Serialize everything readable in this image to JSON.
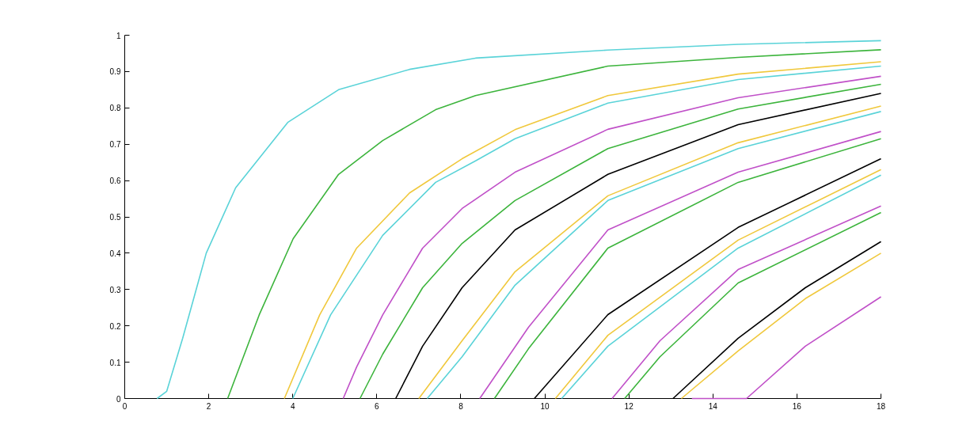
{
  "chart_data": {
    "type": "line",
    "xlim": [
      0,
      18
    ],
    "ylim": [
      0,
      1
    ],
    "xticks": [
      0,
      2,
      4,
      6,
      8,
      10,
      12,
      14,
      16,
      18
    ],
    "yticks": [
      0,
      {
        "value": 0.1,
        "label": "0.1"
      },
      {
        "value": 0.2,
        "label": "0.2"
      },
      {
        "value": 0.3,
        "label": "0.3"
      },
      {
        "value": 0.4,
        "label": "0.4"
      },
      {
        "value": 0.5,
        "label": "0.5"
      },
      {
        "value": 0.6,
        "label": "0.6"
      },
      {
        "value": 0.7,
        "label": "0.7"
      },
      {
        "value": 0.8,
        "label": "0.8"
      },
      {
        "value": 0.9,
        "label": "0.9"
      },
      1
    ],
    "grid": false,
    "marker": "none",
    "line_style": "solid",
    "series": [
      {
        "color": "#5ad3d8",
        "x": [
          0.77,
          1.0,
          1.38,
          1.94,
          2.64,
          3.88,
          5.09,
          6.78,
          8.35,
          11.5,
          14.6,
          18
        ],
        "values": [
          0,
          0.02,
          0.166,
          0.4,
          0.58,
          0.76,
          0.85,
          0.906,
          0.937,
          0.959,
          0.975,
          0.985
        ]
      },
      {
        "color": "#3cb43c",
        "x": [
          2.45,
          3.2,
          4.01,
          5.09,
          6.14,
          7.4,
          8.35,
          11.5,
          14.6,
          18
        ],
        "values": [
          0,
          0.23,
          0.44,
          0.617,
          0.71,
          0.795,
          0.834,
          0.915,
          0.939,
          0.96
        ]
      },
      {
        "color": "#f0c83c",
        "x": [
          3.8,
          4.64,
          5.52,
          6.78,
          8.03,
          9.29,
          11.5,
          14.6,
          18
        ],
        "values": [
          0,
          0.23,
          0.414,
          0.566,
          0.66,
          0.74,
          0.834,
          0.893,
          0.927
        ]
      },
      {
        "color": "#5ad3d8",
        "x": [
          4.0,
          4.9,
          6.14,
          7.4,
          8.35,
          9.29,
          11.5,
          14.6,
          18
        ],
        "values": [
          0,
          0.23,
          0.449,
          0.595,
          0.654,
          0.715,
          0.813,
          0.878,
          0.915
        ]
      },
      {
        "color": "#c050c8",
        "x": [
          5.2,
          5.52,
          6.14,
          7.09,
          8.03,
          9.29,
          11.5,
          14.6,
          18
        ],
        "values": [
          0,
          0.087,
          0.23,
          0.414,
          0.523,
          0.623,
          0.741,
          0.828,
          0.887
        ]
      },
      {
        "color": "#3cb43c",
        "x": [
          5.6,
          6.14,
          7.09,
          8.03,
          9.29,
          11.5,
          14.6,
          18
        ],
        "values": [
          0,
          0.122,
          0.305,
          0.427,
          0.545,
          0.688,
          0.797,
          0.865
        ]
      },
      {
        "color": "#000000",
        "x": [
          6.45,
          7.09,
          8.03,
          9.29,
          11.5,
          14.6,
          18
        ],
        "values": [
          0,
          0.144,
          0.305,
          0.464,
          0.617,
          0.754,
          0.84
        ]
      },
      {
        "color": "#f0c83c",
        "x": [
          7.0,
          8.03,
          9.29,
          11.5,
          14.6,
          18
        ],
        "values": [
          0,
          0.159,
          0.349,
          0.558,
          0.704,
          0.805
        ]
      },
      {
        "color": "#5ad3d8",
        "x": [
          7.2,
          8.03,
          9.29,
          11.5,
          14.6,
          18
        ],
        "values": [
          0,
          0.115,
          0.312,
          0.545,
          0.688,
          0.79
        ]
      },
      {
        "color": "#c050c8",
        "x": [
          8.45,
          9.61,
          11.5,
          14.6,
          18
        ],
        "values": [
          0,
          0.196,
          0.464,
          0.623,
          0.735
        ]
      },
      {
        "color": "#3cb43c",
        "x": [
          8.8,
          9.61,
          11.5,
          14.6,
          18
        ],
        "values": [
          0,
          0.137,
          0.414,
          0.595,
          0.715
        ]
      },
      {
        "color": "#000000",
        "x": [
          9.75,
          11.5,
          14.6,
          18
        ],
        "values": [
          0,
          0.231,
          0.471,
          0.66
        ]
      },
      {
        "color": "#f0c83c",
        "x": [
          10.25,
          11.5,
          14.6,
          18
        ],
        "values": [
          0,
          0.174,
          0.436,
          0.63
        ]
      },
      {
        "color": "#5ad3d8",
        "x": [
          10.4,
          11.5,
          14.6,
          18
        ],
        "values": [
          0,
          0.144,
          0.414,
          0.615
        ]
      },
      {
        "color": "#c050c8",
        "x": [
          11.6,
          12.74,
          14.6,
          18
        ],
        "values": [
          0,
          0.159,
          0.355,
          0.53
        ]
      },
      {
        "color": "#3cb43c",
        "x": [
          11.9,
          12.74,
          14.6,
          18
        ],
        "values": [
          0,
          0.115,
          0.318,
          0.512
        ]
      },
      {
        "color": "#000000",
        "x": [
          13.05,
          14.6,
          16.2,
          18
        ],
        "values": [
          0,
          0.166,
          0.305,
          0.432
        ]
      },
      {
        "color": "#f0c83c",
        "x": [
          13.25,
          14.6,
          16.2,
          18
        ],
        "values": [
          0,
          0.131,
          0.275,
          0.4
        ]
      },
      {
        "color": "#c050c8",
        "x": [
          13.5,
          14.8,
          16.2,
          18
        ],
        "values": [
          0,
          0,
          0.144,
          0.28
        ]
      }
    ]
  }
}
